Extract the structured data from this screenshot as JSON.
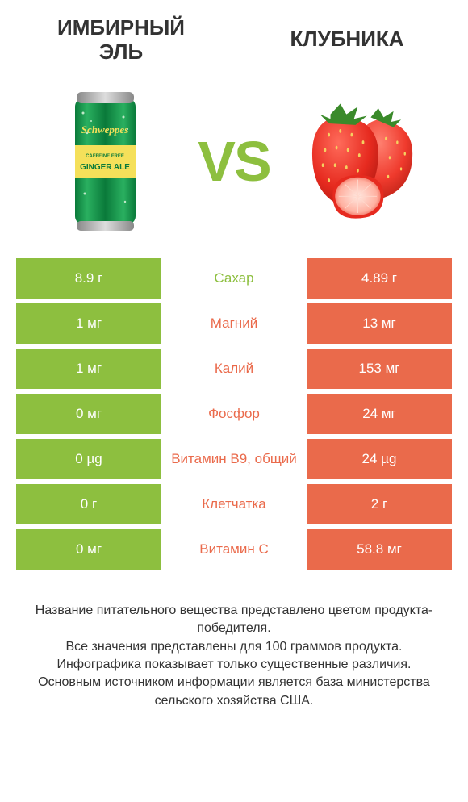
{
  "colors": {
    "left": "#8dbf3f",
    "right": "#ea6a4b",
    "background": "#ffffff",
    "text": "#333333",
    "white": "#ffffff"
  },
  "header": {
    "left_title": "Имбирный эль",
    "right_title": "Клубника",
    "vs": "VS"
  },
  "rows": [
    {
      "left": "8.9 г",
      "label": "Сахар",
      "right": "4.89 г",
      "winner": "left"
    },
    {
      "left": "1 мг",
      "label": "Магний",
      "right": "13 мг",
      "winner": "right"
    },
    {
      "left": "1 мг",
      "label": "Калий",
      "right": "153 мг",
      "winner": "right"
    },
    {
      "left": "0 мг",
      "label": "Фосфор",
      "right": "24 мг",
      "winner": "right"
    },
    {
      "left": "0 µg",
      "label": "Витамин B9, общий",
      "right": "24 µg",
      "winner": "right"
    },
    {
      "left": "0 г",
      "label": "Клетчатка",
      "right": "2 г",
      "winner": "right"
    },
    {
      "left": "0 мг",
      "label": "Витамин C",
      "right": "58.8 мг",
      "winner": "right"
    }
  ],
  "footer": {
    "line1": "Название питательного вещества представлено цветом продукта-победителя.",
    "line2": "Все значения представлены для 100 граммов продукта.",
    "line3": "Инфографика показывает только существенные различия.",
    "line4": "Основным источником информации является база министерства сельского хозяйства США."
  }
}
